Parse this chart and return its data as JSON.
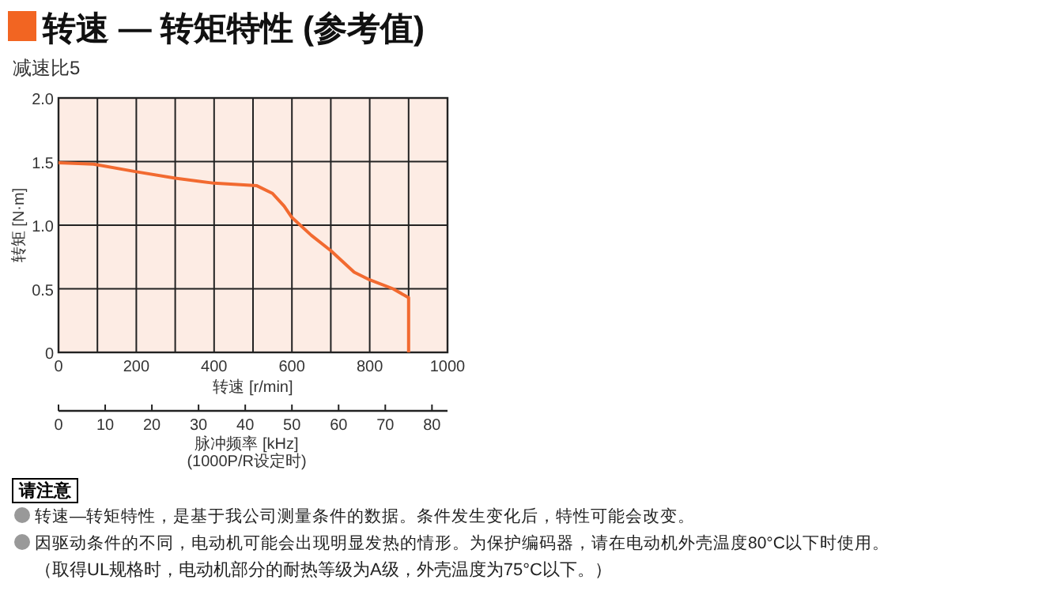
{
  "chart_data": {
    "type": "line",
    "title": "转速 — 转矩特性 (参考值)",
    "subtitle": "减速比5",
    "xlabel": "转速 [r/min]",
    "ylabel": "转矩 [N·m]",
    "x2label": "脉冲频率 [kHz]\n(1000P/R设定时)",
    "xlim": [
      0,
      1000
    ],
    "xticks": [
      0,
      {
        "value": 100,
        "label": null
      },
      200,
      {
        "value": 300,
        "label": null
      },
      400,
      {
        "value": 500,
        "label": null
      },
      600,
      {
        "value": 700,
        "label": null
      },
      800,
      {
        "value": 900,
        "label": null
      },
      1000
    ],
    "ylim": [
      0,
      2
    ],
    "yticks": [
      0,
      0.5,
      {
        "value": 1,
        "label": "1.0"
      },
      1.5,
      {
        "value": 2,
        "label": "2.0"
      }
    ],
    "x2lim": [
      0,
      83.33
    ],
    "x2ticks": [
      0,
      10,
      20,
      30,
      40,
      50,
      60,
      70,
      80
    ],
    "grid": true,
    "series": [
      {
        "color": "#f26a30",
        "x": [
          0,
          90,
          200,
          300,
          400,
          510,
          550,
          580,
          600,
          650,
          700,
          760,
          800,
          860,
          900,
          900
        ],
        "values": [
          1.49,
          1.48,
          1.42,
          1.37,
          1.33,
          1.31,
          1.25,
          1.15,
          1.06,
          0.92,
          0.8,
          0.63,
          0.57,
          0.5,
          0.43,
          0
        ]
      }
    ],
    "annotations": [
      "请注意",
      "转速—转矩特性，是基于我公司测量条件的数据。条件发生变化后，特性可能会改变。",
      "因驱动条件的不同，电动机可能会出现明显发热的情形。为保护编码器，请在电动机外壳温度80°C以下时使用。",
      "（取得UL规格时，电动机部分的耐热等级为A级，外壳温度为75°C以下。）"
    ]
  }
}
